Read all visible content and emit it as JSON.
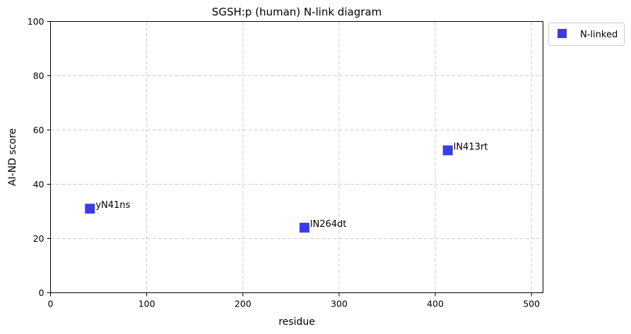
{
  "chart_data": {
    "type": "scatter",
    "title": "SGSH:p (human) N-link diagram",
    "xlabel": "residue",
    "ylabel": "AI-ND score",
    "xlim": [
      0,
      512
    ],
    "ylim": [
      0,
      100
    ],
    "xticks": [
      0,
      100,
      200,
      300,
      400,
      500
    ],
    "yticks": [
      0,
      20,
      40,
      60,
      80,
      100
    ],
    "grid": true,
    "legend_position": "outside-top-right",
    "series": [
      {
        "name": "N-linked",
        "color": "#3c3ce6",
        "marker": "square",
        "points": [
          {
            "x": 41,
            "y": 31,
            "label": "yN41ns"
          },
          {
            "x": 264,
            "y": 24,
            "label": "lN264dt"
          },
          {
            "x": 413,
            "y": 52.5,
            "label": "lN413rt"
          }
        ]
      }
    ]
  }
}
